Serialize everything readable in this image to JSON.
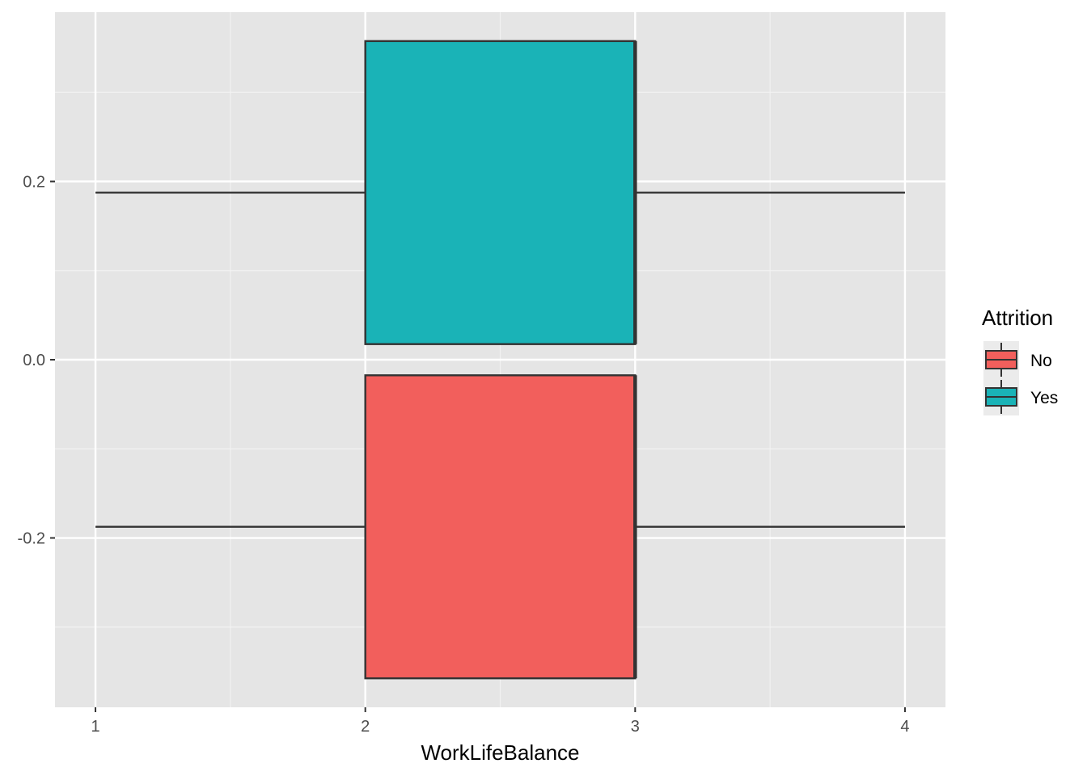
{
  "chart_data": {
    "type": "boxplot",
    "orientation": "horizontal",
    "xlabel": "WorkLifeBalance",
    "ylabel": "",
    "xlim": [
      0.85,
      4.15
    ],
    "ylim": [
      -0.39,
      0.39
    ],
    "x_ticks": [
      1,
      2,
      3,
      4
    ],
    "x_tick_labels": [
      "1",
      "2",
      "3",
      "4"
    ],
    "y_ticks": [
      -0.2,
      0.0,
      0.2
    ],
    "y_tick_labels": [
      "-0.2",
      "0.0",
      "0.2"
    ],
    "grid": true,
    "panel_background": "#e5e5e5",
    "legend": {
      "title": "Attrition",
      "position": "right",
      "entries": [
        {
          "label": "No",
          "color": "#f25f5c"
        },
        {
          "label": "Yes",
          "color": "#1ab3b7"
        }
      ]
    },
    "series": [
      {
        "name": "No",
        "color": "#f25f5c",
        "y_center": -0.1875,
        "y_min": -0.3575,
        "y_max": -0.0175,
        "whisker_low": 1,
        "q1": 2,
        "median": 3,
        "q3": 3,
        "whisker_high": 4
      },
      {
        "name": "Yes",
        "color": "#1ab3b7",
        "y_center": 0.1875,
        "y_min": 0.0175,
        "y_max": 0.3575,
        "whisker_low": 1,
        "q1": 2,
        "median": 3,
        "q3": 3,
        "whisker_high": 4
      }
    ]
  }
}
